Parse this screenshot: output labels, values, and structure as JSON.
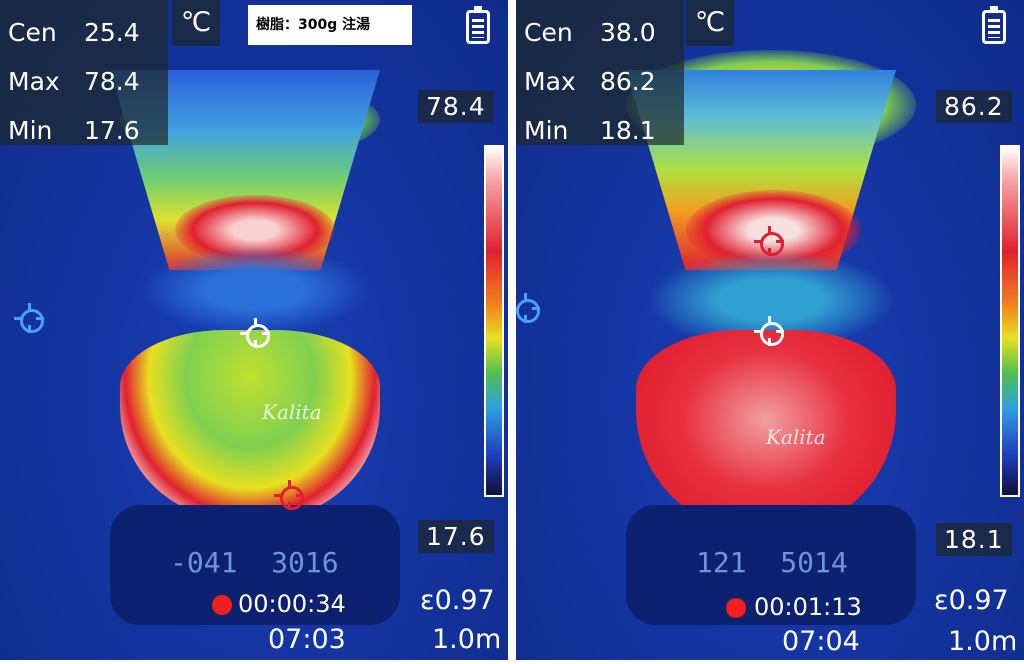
{
  "panels": [
    {
      "center_label": "Cen",
      "center": "25.4",
      "max_label": "Max",
      "max": "78.4",
      "min_label": "Min",
      "min": "17.6",
      "unit": "℃",
      "scale_max": "78.4",
      "scale_min": "17.6",
      "emissivity": "ε0.97",
      "distance": "1.0m",
      "rec_time": "00:00:34",
      "clock": "07:03",
      "scale_display": "-041  3016",
      "logo": "Kalita",
      "note": "樹脂：300g 注湯"
    },
    {
      "center_label": "Cen",
      "center": "38.0",
      "max_label": "Max",
      "max": "86.2",
      "min_label": "Min",
      "min": "18.1",
      "unit": "℃",
      "scale_max": "86.2",
      "scale_min": "18.1",
      "emissivity": "ε0.97",
      "distance": "1.0m",
      "rec_time": "00:01:13",
      "clock": "07:04",
      "scale_display": "121  5014",
      "logo": "Kalita"
    }
  ],
  "icons": {
    "battery": "battery-full-icon",
    "record": "recording-dot-icon",
    "crosshair": "crosshair-icon"
  },
  "colors": {
    "recording": "#f02020",
    "background_cold": "#1434a0"
  }
}
